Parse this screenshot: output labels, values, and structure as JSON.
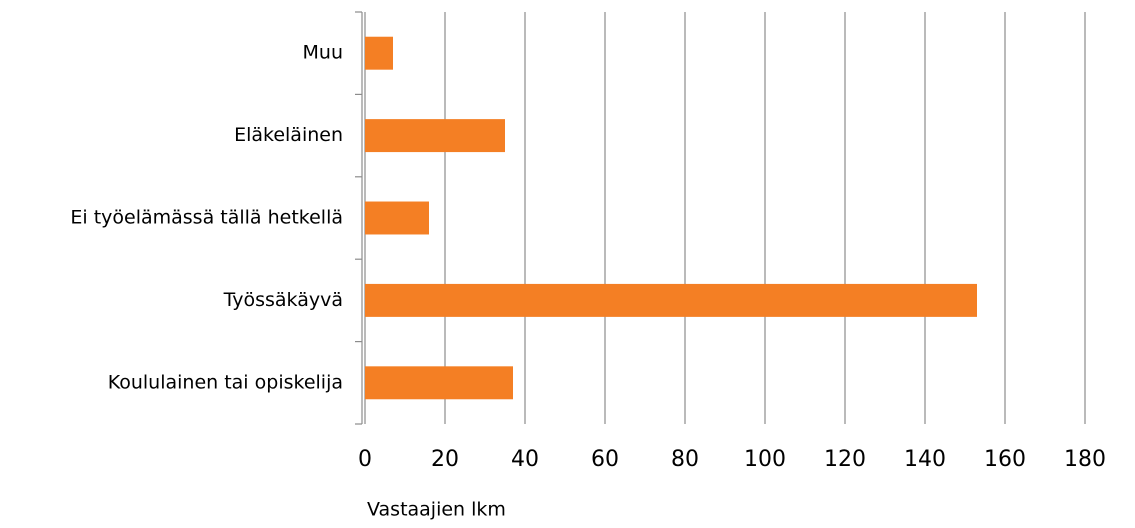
{
  "chart_data": {
    "type": "bar",
    "orientation": "horizontal",
    "categories": [
      "Muu",
      "Eläkeläinen",
      "Ei työelämässä tällä hetkellä",
      "Työssäkäyvä",
      "Koululainen tai opiskelija"
    ],
    "values": [
      7,
      35,
      16,
      153,
      37
    ],
    "color": "#f47f24",
    "xlabel": "Vastaajien lkm",
    "xlim": [
      0,
      180
    ],
    "xticks": [
      0,
      20,
      40,
      60,
      80,
      100,
      120,
      140,
      160,
      180
    ],
    "grid": true
  }
}
